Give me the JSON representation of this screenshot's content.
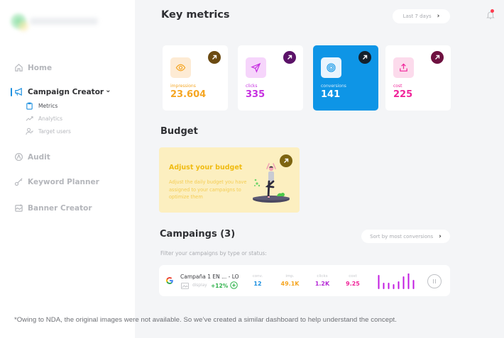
{
  "sidebar": {
    "logo_alt": "brand-logo",
    "items": [
      {
        "label": "Home",
        "icon": "home-icon"
      },
      {
        "label": "Campaign Creator",
        "icon": "megaphone-icon",
        "active": true,
        "expanded": true,
        "children": [
          {
            "label": "Metrics",
            "icon": "clipboard-icon",
            "active": true
          },
          {
            "label": "Analytics",
            "icon": "trend-icon"
          },
          {
            "label": "Target users",
            "icon": "users-icon"
          }
        ]
      },
      {
        "label": "Audit",
        "icon": "audit-icon"
      },
      {
        "label": "Keyword Planner",
        "icon": "key-icon"
      },
      {
        "label": "Banner Creator",
        "icon": "banner-icon"
      }
    ],
    "expand_glyph": "⌄"
  },
  "header": {
    "title": "Key metrics",
    "range_label": "Last 7 days",
    "range_chevron": "›",
    "notification_icon": "bell-icon"
  },
  "metrics": [
    {
      "label": "impressions",
      "value": "23.604",
      "icon": "eye-icon",
      "color": "#f5a623",
      "icon_bg": "#fdebd4",
      "card_bg": "#ffffff",
      "arrow_bg": "#6b4a12"
    },
    {
      "label": "clicks",
      "value": "335",
      "icon": "send-icon",
      "color": "#c62fe0",
      "icon_bg": "#f6d5fb",
      "card_bg": "#ffffff",
      "arrow_bg": "#5b1268"
    },
    {
      "label": "conversions",
      "value": "141",
      "icon": "target-icon",
      "color": "#ffffff",
      "icon_bg": "#e9f4fd",
      "card_bg": "#0e95e6",
      "arrow_bg": "#14202b"
    },
    {
      "label": "cost",
      "value": "225",
      "icon": "upload-icon",
      "color": "#f0249a",
      "icon_bg": "#fcdbec",
      "card_bg": "#ffffff",
      "arrow_bg": "#6e1140"
    }
  ],
  "budget": {
    "section_title": "Budget",
    "card_title": "Adjust your budget",
    "card_desc": "Adjust the daily budget you have assigned to your campaigns to optimize them",
    "illustration": "yoga-person-illustration"
  },
  "campaigns": {
    "section_title": "Campaings (3)",
    "sort_label": "Sort by most conversions",
    "sort_chevron": "›",
    "filter_text": "Filter your campaigns by type or status:",
    "rows": [
      {
        "name": "Campaña 1 EN ... - LO",
        "type": "display",
        "trend": "+12%",
        "source_icon": "google-icon",
        "stats": [
          {
            "label": "conv.",
            "value": "12",
            "color": "#1b8fe0"
          },
          {
            "label": "imp.",
            "value": "49.1K",
            "color": "#f5a623"
          },
          {
            "label": "clicks",
            "value": "1.2K",
            "color": "#b52ad6"
          },
          {
            "label": "cost",
            "value": "9.25",
            "color": "#f0249a"
          }
        ],
        "spark": [
          20,
          9,
          9,
          7,
          11,
          18,
          23,
          13
        ],
        "spark_color": "#c21be0",
        "status_action": "pause"
      }
    ]
  },
  "footnote": "*Owing to NDA, the original images were not available. So we’ve created a similar dashboard to help understand the concept."
}
